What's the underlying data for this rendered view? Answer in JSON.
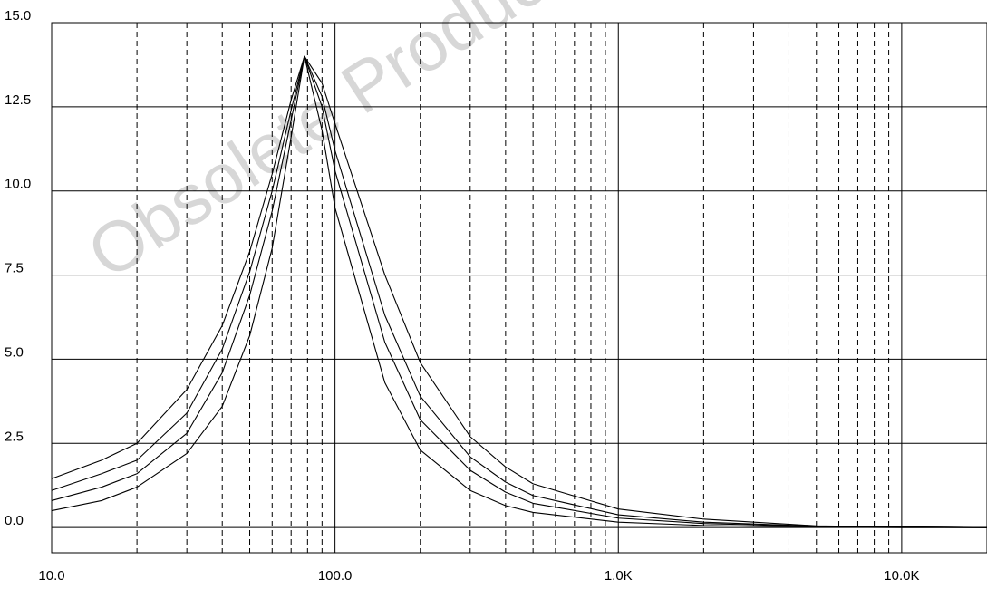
{
  "watermark": "Obsolete Product",
  "chart_data": {
    "type": "line",
    "title": "",
    "xlabel": "",
    "ylabel": "",
    "x_scale": "log",
    "xlim": [
      10,
      20000
    ],
    "ylim": [
      -0.75,
      15.0
    ],
    "grid": {
      "major": "solid",
      "minor": "dashed"
    },
    "x_tick_values": [
      10,
      100,
      1000,
      10000
    ],
    "x_tick_labels": [
      "10.0",
      "100.0",
      "1.0K",
      "10.0K"
    ],
    "y_tick_values": [
      0,
      2.5,
      5,
      7.5,
      10,
      12.5,
      15
    ],
    "y_tick_labels": [
      "0.0",
      "2.5",
      "5.0",
      "7.5",
      "10.0",
      "12.5",
      "15.0"
    ],
    "series_color": "#000000",
    "series": [
      {
        "x": [
          10,
          15,
          20,
          30,
          40,
          50,
          60,
          70,
          78,
          90,
          100,
          150,
          200,
          300,
          400,
          500,
          1000,
          2000,
          5000,
          10000,
          20000
        ],
        "y": [
          1.45,
          2.0,
          2.5,
          4.1,
          6.0,
          8.2,
          10.5,
          12.7,
          14.0,
          13.2,
          12.0,
          7.5,
          4.9,
          2.7,
          1.8,
          1.3,
          0.55,
          0.25,
          0.05,
          0.02,
          0.0
        ]
      },
      {
        "x": [
          10,
          15,
          20,
          30,
          40,
          50,
          60,
          70,
          78,
          90,
          100,
          150,
          200,
          300,
          400,
          500,
          1000,
          2000,
          5000,
          10000,
          20000
        ],
        "y": [
          1.1,
          1.6,
          2.0,
          3.4,
          5.3,
          7.6,
          10.0,
          12.4,
          14.0,
          12.8,
          11.2,
          6.3,
          3.9,
          2.1,
          1.35,
          0.95,
          0.38,
          0.16,
          0.04,
          0.01,
          0.0
        ]
      },
      {
        "x": [
          10,
          15,
          20,
          30,
          40,
          50,
          60,
          70,
          78,
          90,
          100,
          150,
          200,
          300,
          400,
          500,
          1000,
          2000,
          5000,
          10000,
          20000
        ],
        "y": [
          0.8,
          1.2,
          1.6,
          2.8,
          4.6,
          6.9,
          9.4,
          12.1,
          14.0,
          12.5,
          10.6,
          5.5,
          3.2,
          1.7,
          1.05,
          0.72,
          0.28,
          0.12,
          0.03,
          0.01,
          0.0
        ]
      },
      {
        "x": [
          10,
          15,
          20,
          30,
          40,
          50,
          60,
          70,
          78,
          90,
          100,
          150,
          200,
          300,
          400,
          500,
          1000,
          2000,
          5000,
          10000,
          20000
        ],
        "y": [
          0.5,
          0.8,
          1.2,
          2.2,
          3.6,
          5.7,
          8.3,
          11.6,
          14.0,
          11.8,
          9.5,
          4.3,
          2.3,
          1.1,
          0.65,
          0.45,
          0.16,
          0.06,
          0.015,
          0.0,
          0.0
        ]
      }
    ]
  }
}
